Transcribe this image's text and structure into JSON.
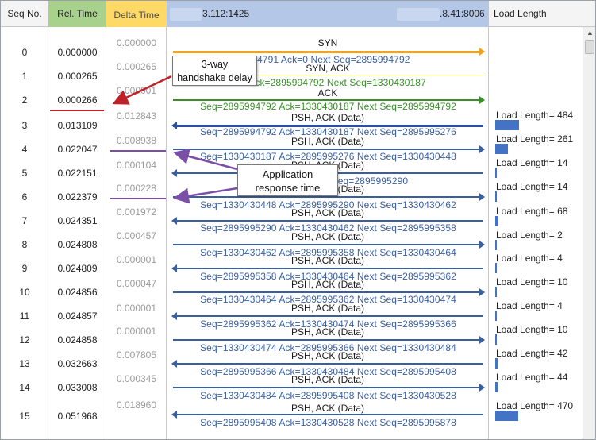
{
  "header": {
    "seq_no": "Seq No.",
    "rel_time": "Rel. Time",
    "delta_time": "Delta Time",
    "left_host": "3.112:1425",
    "right_host": ".8.41:8006",
    "load_length": "Load Length"
  },
  "rows": [
    {
      "seq": "0",
      "rel": "0.000000",
      "delta": "0.000000"
    },
    {
      "seq": "1",
      "rel": "0.000265",
      "delta": "0.000265"
    },
    {
      "seq": "2",
      "rel": "0.000266",
      "delta": "0.000001"
    },
    {
      "seq": "3",
      "rel": "0.013109",
      "delta": "0.012843"
    },
    {
      "seq": "4",
      "rel": "0.022047",
      "delta": "0.008938"
    },
    {
      "seq": "5",
      "rel": "0.022151",
      "delta": "0.000104"
    },
    {
      "seq": "6",
      "rel": "0.022379",
      "delta": "0.000228"
    },
    {
      "seq": "7",
      "rel": "0.024351",
      "delta": "0.001972"
    },
    {
      "seq": "8",
      "rel": "0.024808",
      "delta": "0.000457"
    },
    {
      "seq": "9",
      "rel": "0.024809",
      "delta": "0.000001"
    },
    {
      "seq": "10",
      "rel": "0.024856",
      "delta": "0.000047"
    },
    {
      "seq": "11",
      "rel": "0.024857",
      "delta": "0.000001"
    },
    {
      "seq": "12",
      "rel": "0.024858",
      "delta": "0.000001"
    },
    {
      "seq": "13",
      "rel": "0.032663",
      "delta": "0.007805"
    },
    {
      "seq": "14",
      "rel": "0.033008",
      "delta": "0.000345"
    },
    {
      "seq": "15",
      "rel": "0.051968",
      "delta": "0.018960"
    }
  ],
  "flows": [
    {
      "label": "SYN",
      "detail": "994791  Ack=0  Next Seq=2895994792",
      "color": "#f4a21b"
    },
    {
      "label": "SYN, ACK",
      "detail": "186  Ack=2895994792  Next Seq=1330430187",
      "color": "#c9c93a"
    },
    {
      "label": "ACK",
      "detail": "Seq=2895994792  Ack=1330430187  Next Seq=2895994792",
      "color": "#3a8f2a"
    },
    {
      "label": "PSH, ACK (Data)",
      "detail": "Seq=2895994792  Ack=1330430187  Next Seq=2895995276",
      "color": "#2f4f9e"
    },
    {
      "label": "PSH, ACK (Data)",
      "detail": "Seq=1330430187  Ack=2895995276  Next Seq=1330430448",
      "color": "#3a5fa0"
    },
    {
      "label": "PSH, ACK (Data)",
      "detail": "Seq=28959  8  Next Seq=2895995290",
      "color": "#3a5fa0"
    },
    {
      "label": "PSH, ACK (Data)",
      "detail": "Seq=1330430448  Ack=2895995290  Next Seq=1330430462",
      "color": "#3a5fa0"
    },
    {
      "label": "PSH, ACK (Data)",
      "detail": "Seq=2895995290  Ack=1330430462  Next Seq=2895995358",
      "color": "#3a5fa0"
    },
    {
      "label": "PSH, ACK (Data)",
      "detail": "Seq=1330430462  Ack=2895995358  Next Seq=1330430464",
      "color": "#3a5fa0"
    },
    {
      "label": "PSH, ACK (Data)",
      "detail": "Seq=2895995358  Ack=1330430464  Next Seq=2895995362",
      "color": "#3a5fa0"
    },
    {
      "label": "PSH, ACK (Data)",
      "detail": "Seq=1330430464  Ack=2895995362  Next Seq=1330430474",
      "color": "#3a5fa0"
    },
    {
      "label": "PSH, ACK (Data)",
      "detail": "Seq=2895995362  Ack=1330430474  Next Seq=2895995366",
      "color": "#3a5fa0"
    },
    {
      "label": "PSH, ACK (Data)",
      "detail": "Seq=1330430474  Ack=2895995366  Next Seq=1330430484",
      "color": "#3a5fa0"
    },
    {
      "label": "PSH, ACK (Data)",
      "detail": "Seq=2895995366  Ack=1330430484  Next Seq=2895995408",
      "color": "#3a5fa0"
    },
    {
      "label": "PSH, ACK (Data)",
      "detail": "Seq=1330430484  Ack=2895995408  Next Seq=1330430528",
      "color": "#3a5fa0"
    },
    {
      "label": "PSH, ACK (Data)",
      "detail": "Seq=2895995408  Ack=1330430528  Next Seq=2895995878",
      "color": "#3a5fa0"
    }
  ],
  "load_lengths": [
    {
      "text": "Load Length= 484",
      "value": 484
    },
    {
      "text": "Load Length= 261",
      "value": 261
    },
    {
      "text": "Load Length= 14",
      "value": 14
    },
    {
      "text": "Load Length= 14",
      "value": 14
    },
    {
      "text": "Load Length= 68",
      "value": 68
    },
    {
      "text": "Load Length= 2",
      "value": 2
    },
    {
      "text": "Load Length= 4",
      "value": 4
    },
    {
      "text": "Load Length= 10",
      "value": 10
    },
    {
      "text": "Load Length= 4",
      "value": 4
    },
    {
      "text": "Load Length= 10",
      "value": 10
    },
    {
      "text": "Load Length= 42",
      "value": 42
    },
    {
      "text": "Load Length= 44",
      "value": 44
    },
    {
      "text": "Load Length= 470",
      "value": 470
    }
  ],
  "annotations": {
    "handshake_line1": "3-way",
    "handshake_line2": "handshake delay",
    "app_line1": "Application",
    "app_line2": "response time"
  },
  "colors": {
    "rel_header": "#a9d18e",
    "delta_header": "#ffd966",
    "flow_header": "#b4c7e7",
    "handshake_arrow": "#c0202a",
    "app_arrow": "#7b4fa8",
    "load_bar": "#4472c4"
  }
}
